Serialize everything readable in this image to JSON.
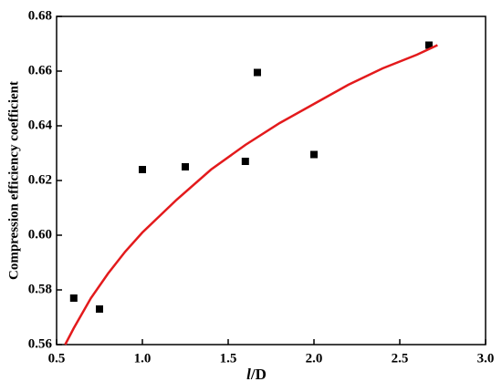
{
  "chart_data": {
    "type": "scatter",
    "xlabel": [
      "l",
      "/D"
    ],
    "ylabel": "Compression efficiency coefficient",
    "xlim": [
      0.5,
      3.0
    ],
    "xticks": [
      0.5,
      {
        "value": 1.0,
        "label": "1.0"
      },
      1.5,
      {
        "value": 2.0,
        "label": "2.0"
      },
      2.5,
      {
        "value": 3.0,
        "label": "3.0"
      }
    ],
    "ylim": [
      0.56,
      0.68
    ],
    "yticks": [
      0.56,
      0.58,
      {
        "value": 0.6,
        "label": "0.60"
      },
      0.62,
      0.64,
      0.66,
      0.68
    ],
    "series": [
      {
        "color": "#000000",
        "marker": "square",
        "x": [
          0.6,
          0.75,
          1.0,
          1.25,
          1.6,
          1.67,
          2.0,
          2.67
        ],
        "values": [
          0.577,
          0.573,
          0.624,
          0.625,
          0.627,
          0.6595,
          0.6295,
          0.6695
        ]
      },
      {
        "color": "#e31a1c",
        "line": true,
        "x": [
          0.55,
          0.6,
          0.7,
          0.8,
          0.9,
          1.0,
          1.2,
          1.4,
          1.6,
          1.8,
          2.0,
          2.2,
          2.4,
          2.6,
          2.72
        ],
        "values": [
          0.56,
          0.566,
          0.577,
          0.586,
          0.594,
          0.601,
          0.613,
          0.624,
          0.633,
          0.641,
          0.648,
          0.655,
          0.661,
          0.666,
          0.6695
        ]
      }
    ]
  }
}
